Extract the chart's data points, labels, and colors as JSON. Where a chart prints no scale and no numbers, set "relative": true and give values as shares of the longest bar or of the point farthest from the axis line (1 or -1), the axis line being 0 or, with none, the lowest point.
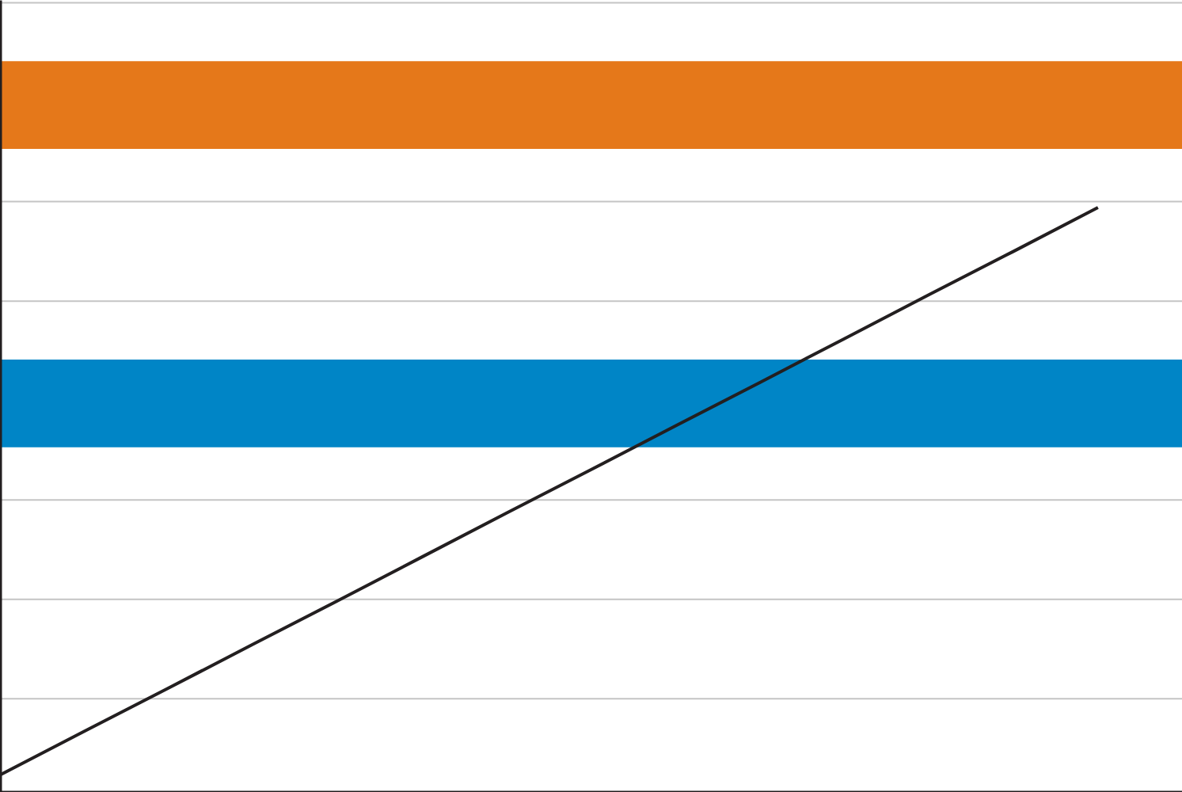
{
  "chart_data": {
    "type": "line",
    "relative": true,
    "categories": [
      null,
      null,
      null,
      null,
      null,
      null,
      null,
      null,
      null,
      null,
      null,
      null,
      null,
      null,
      null
    ],
    "series": [
      {
        "color": "#231f20",
        "values": [
          0.03,
          0.105,
          0.179,
          0.254,
          0.328,
          0.403,
          0.478,
          0.552,
          0.627,
          0.701,
          0.776,
          0.851,
          0.925,
          1,
          null
        ]
      }
    ],
    "bands": [
      {
        "axis": "y",
        "from": 0.59,
        "to": 0.74,
        "color": "#0085c6"
      },
      {
        "axis": "y",
        "from": 1.1,
        "to": 1.25,
        "color": "#e5781a"
      }
    ],
    "ref_lines": [
      {
        "axis": "y",
        "value": 0,
        "color": "#231f20"
      },
      {
        "axis": "y",
        "value": 0.16,
        "color": "#c4c4c4"
      },
      {
        "axis": "y",
        "value": 0.33,
        "color": "#c4c4c4"
      },
      {
        "axis": "y",
        "value": 0.5,
        "color": "#c4c4c4"
      },
      {
        "axis": "y",
        "value": 0.84,
        "color": "#c4c4c4"
      },
      {
        "axis": "y",
        "value": 1.01,
        "color": "#c4c4c4"
      },
      {
        "axis": "y",
        "value": 1.35,
        "color": "#c4c4c4"
      }
    ],
    "line_style": "solid"
  }
}
